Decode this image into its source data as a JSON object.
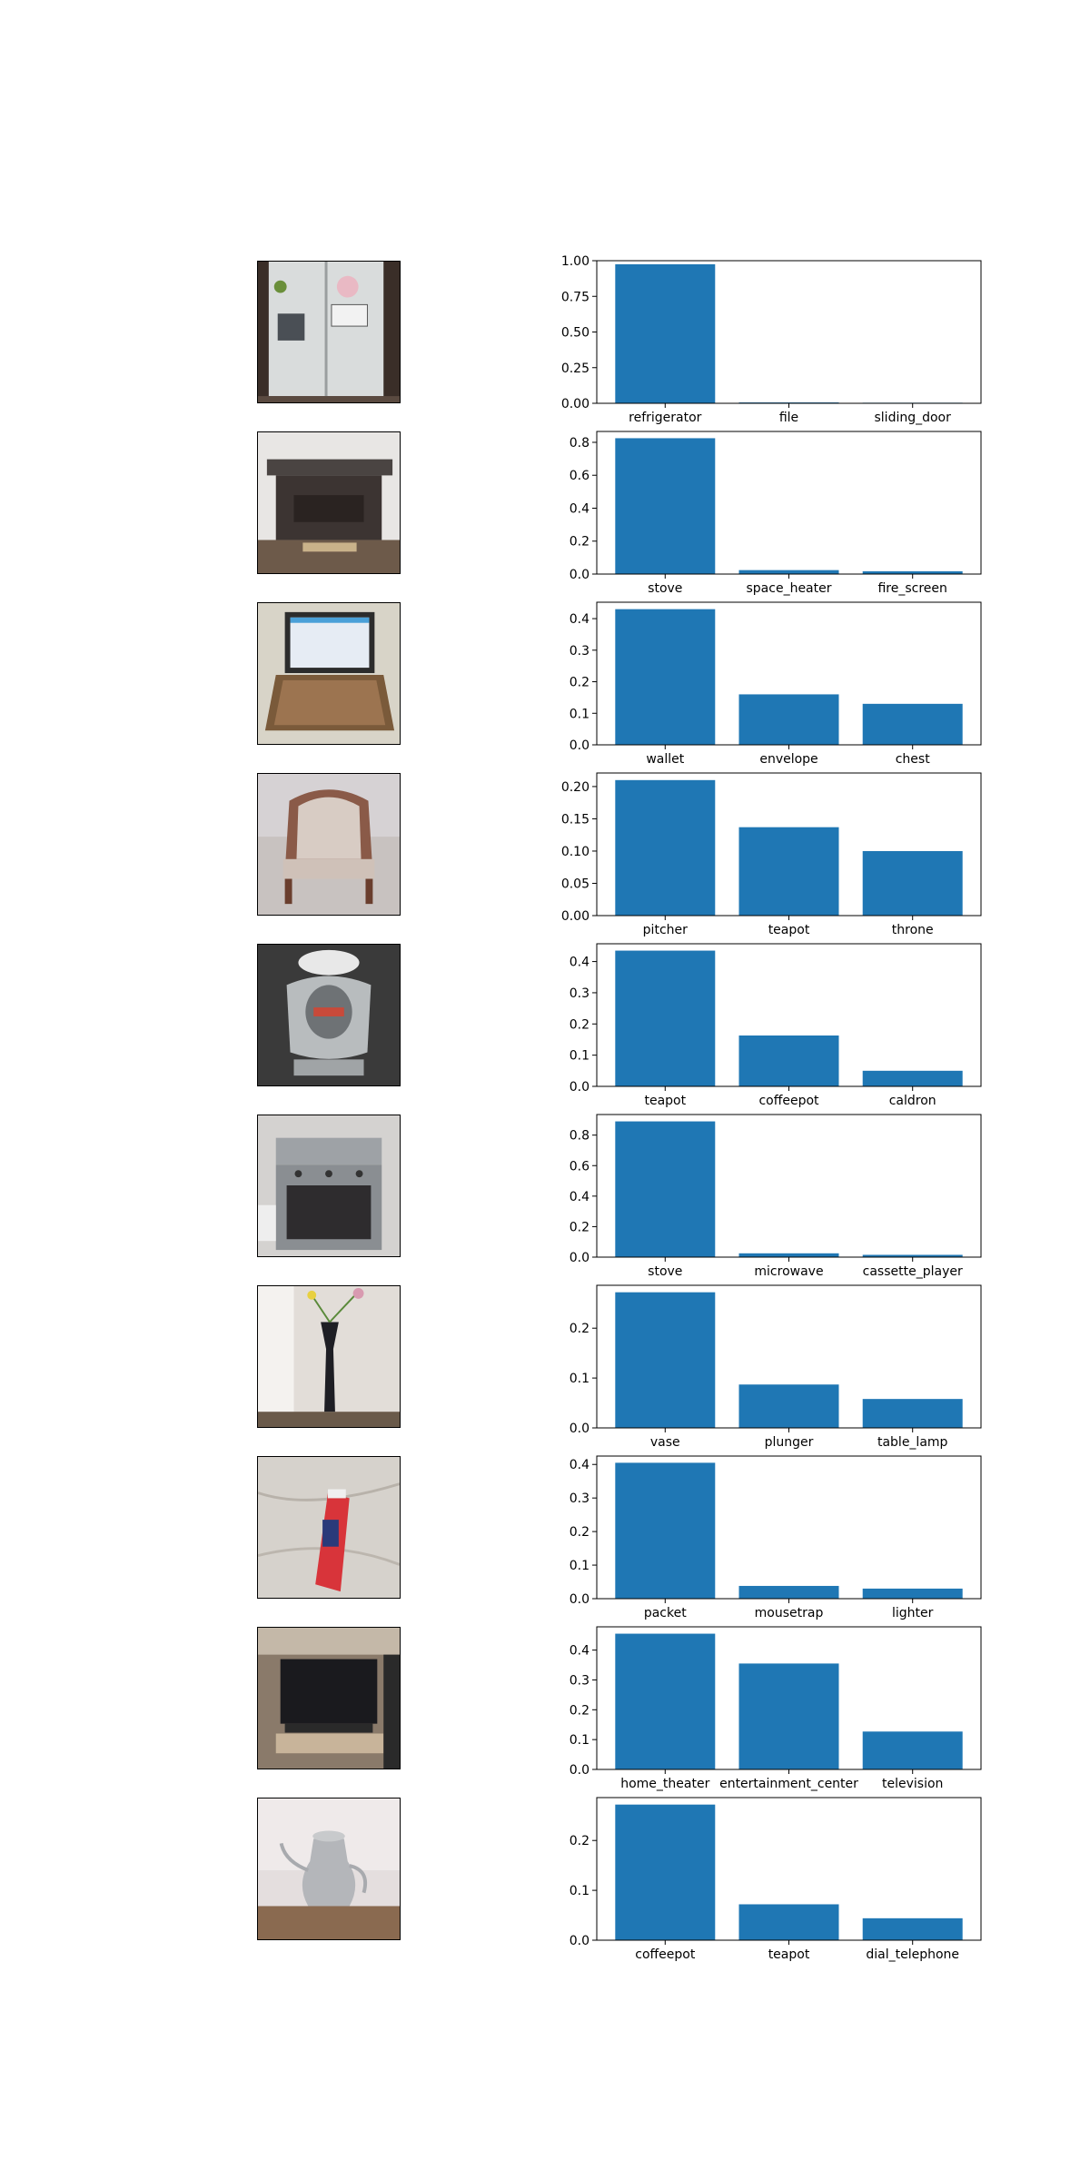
{
  "figure": {
    "thumbnails": [
      {
        "subject": "refrigerator-photo"
      },
      {
        "subject": "stove-photo"
      },
      {
        "subject": "laptop-photo"
      },
      {
        "subject": "armchair-photo"
      },
      {
        "subject": "teapot-photo"
      },
      {
        "subject": "stove-photo"
      },
      {
        "subject": "vase-photo"
      },
      {
        "subject": "toothpaste-photo"
      },
      {
        "subject": "television-photo"
      },
      {
        "subject": "coffeepot-photo"
      }
    ]
  },
  "colors": {
    "bar": "#1f77b4",
    "axis": "#000000"
  },
  "chart_data": [
    {
      "type": "bar",
      "categories": [
        "refrigerator",
        "file",
        "sliding_door"
      ],
      "values": [
        0.975,
        0.006,
        0.004
      ],
      "ylim": [
        0,
        1.0
      ],
      "yticks": [
        "0.00",
        "0.25",
        "0.50",
        "0.75",
        "1.00"
      ],
      "ytick_values": [
        0,
        0.25,
        0.5,
        0.75,
        1.0
      ],
      "grid": false
    },
    {
      "type": "bar",
      "categories": [
        "stove",
        "space_heater",
        "fire_screen"
      ],
      "values": [
        0.825,
        0.024,
        0.017
      ],
      "ylim": [
        0,
        0.866
      ],
      "yticks": [
        "0.0",
        "0.2",
        "0.4",
        "0.6",
        "0.8"
      ],
      "ytick_values": [
        0,
        0.2,
        0.4,
        0.6,
        0.8
      ],
      "grid": false
    },
    {
      "type": "bar",
      "categories": [
        "wallet",
        "envelope",
        "chest"
      ],
      "values": [
        0.43,
        0.16,
        0.13
      ],
      "ylim": [
        0,
        0.452
      ],
      "yticks": [
        "0.0",
        "0.1",
        "0.2",
        "0.3",
        "0.4"
      ],
      "ytick_values": [
        0,
        0.1,
        0.2,
        0.3,
        0.4
      ],
      "grid": false
    },
    {
      "type": "bar",
      "categories": [
        "pitcher",
        "teapot",
        "throne"
      ],
      "values": [
        0.21,
        0.137,
        0.1
      ],
      "ylim": [
        0,
        0.221
      ],
      "yticks": [
        "0.00",
        "0.05",
        "0.10",
        "0.15",
        "0.20"
      ],
      "ytick_values": [
        0,
        0.05,
        0.1,
        0.15,
        0.2
      ],
      "grid": false
    },
    {
      "type": "bar",
      "categories": [
        "teapot",
        "coffeepot",
        "caldron"
      ],
      "values": [
        0.435,
        0.163,
        0.05
      ],
      "ylim": [
        0,
        0.457
      ],
      "yticks": [
        "0.0",
        "0.1",
        "0.2",
        "0.3",
        "0.4"
      ],
      "ytick_values": [
        0,
        0.1,
        0.2,
        0.3,
        0.4
      ],
      "grid": false
    },
    {
      "type": "bar",
      "categories": [
        "stove",
        "microwave",
        "cassette_player"
      ],
      "values": [
        0.89,
        0.025,
        0.015
      ],
      "ylim": [
        0,
        0.935
      ],
      "yticks": [
        "0.0",
        "0.2",
        "0.4",
        "0.6",
        "0.8"
      ],
      "ytick_values": [
        0,
        0.2,
        0.4,
        0.6,
        0.8
      ],
      "grid": false
    },
    {
      "type": "bar",
      "categories": [
        "vase",
        "plunger",
        "table_lamp"
      ],
      "values": [
        0.272,
        0.087,
        0.058
      ],
      "ylim": [
        0,
        0.286
      ],
      "yticks": [
        "0.0",
        "0.1",
        "0.2"
      ],
      "ytick_values": [
        0,
        0.1,
        0.2
      ],
      "grid": false
    },
    {
      "type": "bar",
      "categories": [
        "packet",
        "mousetrap",
        "lighter"
      ],
      "values": [
        0.405,
        0.038,
        0.03
      ],
      "ylim": [
        0,
        0.425
      ],
      "yticks": [
        "0.0",
        "0.1",
        "0.2",
        "0.3",
        "0.4"
      ],
      "ytick_values": [
        0,
        0.1,
        0.2,
        0.3,
        0.4
      ],
      "grid": false
    },
    {
      "type": "bar",
      "categories": [
        "home_theater",
        "entertainment_center",
        "television"
      ],
      "values": [
        0.455,
        0.355,
        0.127
      ],
      "ylim": [
        0,
        0.478
      ],
      "yticks": [
        "0.0",
        "0.1",
        "0.2",
        "0.3",
        "0.4"
      ],
      "ytick_values": [
        0,
        0.1,
        0.2,
        0.3,
        0.4
      ],
      "grid": false
    },
    {
      "type": "bar",
      "categories": [
        "coffeepot",
        "teapot",
        "dial_telephone"
      ],
      "values": [
        0.272,
        0.072,
        0.044
      ],
      "ylim": [
        0,
        0.286
      ],
      "yticks": [
        "0.0",
        "0.1",
        "0.2"
      ],
      "ytick_values": [
        0,
        0.1,
        0.2
      ],
      "grid": false
    }
  ]
}
